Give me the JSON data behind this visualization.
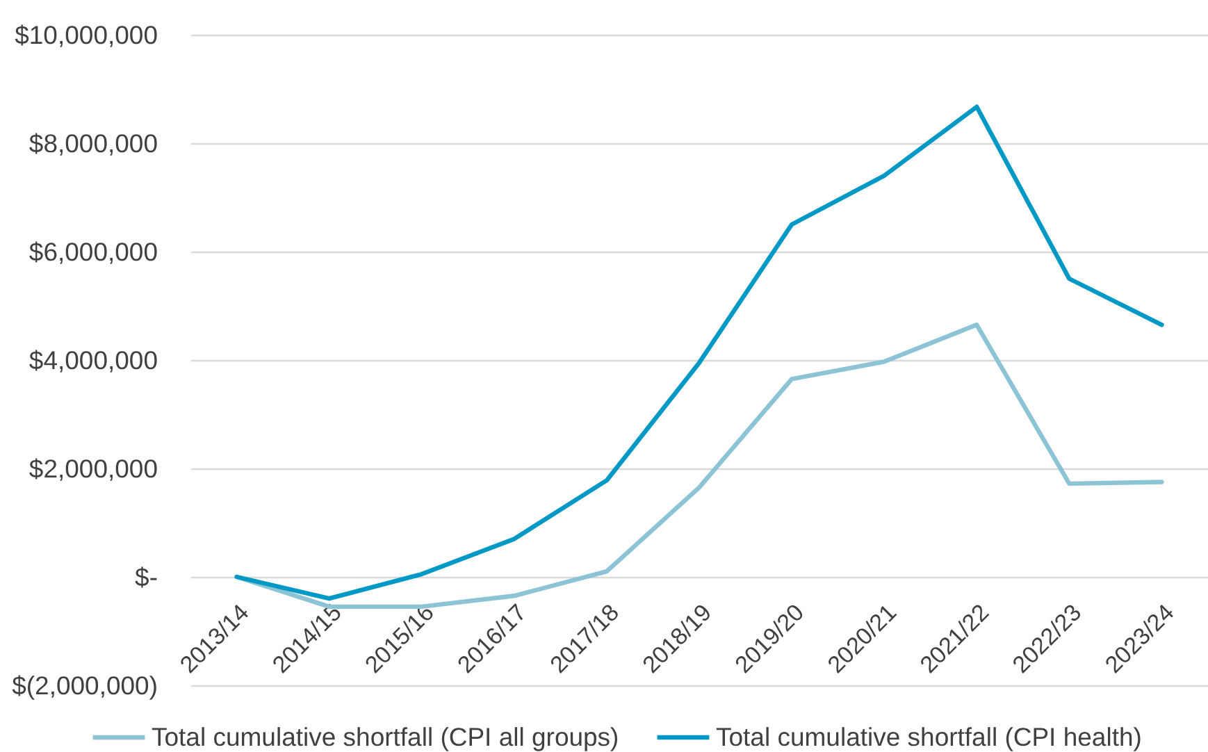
{
  "chart_data": {
    "type": "line",
    "categories": [
      "2013/14",
      "2014/15",
      "2015/16",
      "2016/17",
      "2017/18",
      "2018/19",
      "2019/20",
      "2020/21",
      "2021/22",
      "2022/23",
      "2023/24"
    ],
    "series": [
      {
        "name": "Total cumulative shortfall (CPI all groups)",
        "color": "#8cc4d6",
        "values": [
          0,
          -550000,
          -550000,
          -350000,
          100000,
          1650000,
          3650000,
          3970000,
          4650000,
          1720000,
          1750000
        ]
      },
      {
        "name": "Total cumulative shortfall (CPI health)",
        "color": "#0099c6",
        "values": [
          0,
          -400000,
          50000,
          700000,
          1780000,
          3950000,
          6500000,
          7400000,
          8670000,
          5500000,
          4650000
        ]
      }
    ],
    "ylim": [
      -2000000,
      10000000
    ],
    "yticks": [
      {
        "value": -2000000,
        "label": "$(2,000,000)"
      },
      {
        "value": 0,
        "label": "$-"
      },
      {
        "value": 2000000,
        "label": "$2,000,000"
      },
      {
        "value": 4000000,
        "label": "$4,000,000"
      },
      {
        "value": 6000000,
        "label": "$6,000,000"
      },
      {
        "value": 8000000,
        "label": "$8,000,000"
      },
      {
        "value": 10000000,
        "label": "$10,000,000"
      }
    ],
    "grid": "y",
    "legend": "bottom"
  }
}
